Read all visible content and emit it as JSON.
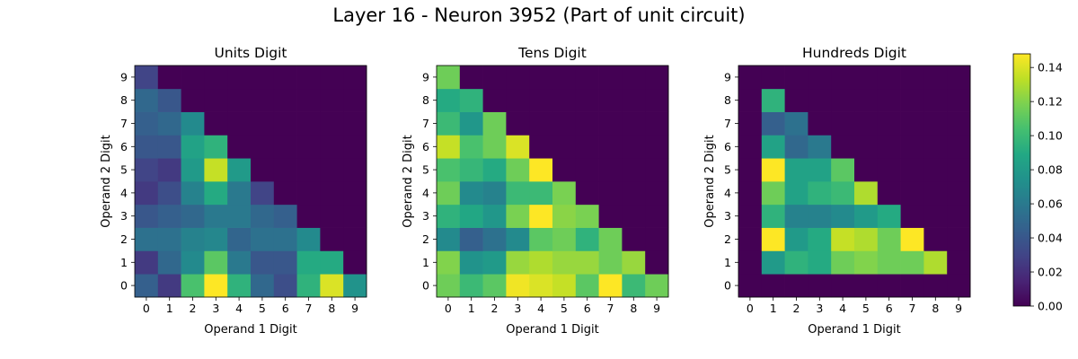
{
  "figure": {
    "title": "Layer 16 - Neuron 3952 (Part of unit circuit)"
  },
  "colorbar": {
    "min": 0,
    "max": 0.148,
    "ticks": [
      0.0,
      0.02,
      0.04,
      0.06,
      0.08,
      0.1,
      0.12,
      0.14
    ],
    "tick_labels": [
      "0.00",
      "0.02",
      "0.04",
      "0.06",
      "0.08",
      "0.10",
      "0.12",
      "0.14"
    ],
    "colormap": "viridis"
  },
  "chart_data": [
    {
      "type": "heatmap",
      "title": "Units Digit",
      "xlabel": "Operand 1 Digit",
      "ylabel": "Operand 2 Digit",
      "x_ticks": [
        "0",
        "1",
        "2",
        "3",
        "4",
        "5",
        "6",
        "7",
        "8",
        "9"
      ],
      "y_ticks": [
        "0",
        "1",
        "2",
        "3",
        "4",
        "5",
        "6",
        "7",
        "8",
        "9"
      ],
      "vmin": 0,
      "vmax": 0.148,
      "values_by_operand2": [
        [
          0.045,
          0.025,
          0.105,
          0.148,
          0.095,
          0.05,
          0.035,
          0.095,
          0.14,
          0.075
        ],
        [
          0.025,
          0.05,
          0.07,
          0.11,
          0.06,
          0.04,
          0.04,
          0.09,
          0.09,
          0.0
        ],
        [
          0.055,
          0.055,
          0.065,
          0.068,
          0.048,
          0.055,
          0.055,
          0.07,
          0.0,
          0.0
        ],
        [
          0.04,
          0.045,
          0.05,
          0.06,
          0.06,
          0.05,
          0.045,
          0.0,
          0.0,
          0.0
        ],
        [
          0.025,
          0.035,
          0.065,
          0.09,
          0.06,
          0.03,
          0.0,
          0.0,
          0.0,
          0.0
        ],
        [
          0.03,
          0.025,
          0.08,
          0.135,
          0.08,
          0.0,
          0.0,
          0.0,
          0.0,
          0.0
        ],
        [
          0.04,
          0.04,
          0.085,
          0.095,
          0.0,
          0.0,
          0.0,
          0.0,
          0.0,
          0.0
        ],
        [
          0.045,
          0.05,
          0.07,
          0.0,
          0.0,
          0.0,
          0.0,
          0.0,
          0.0,
          0.0
        ],
        [
          0.05,
          0.04,
          0.0,
          0.0,
          0.0,
          0.0,
          0.0,
          0.0,
          0.0,
          0.0
        ],
        [
          0.03,
          0.0,
          0.0,
          0.0,
          0.0,
          0.0,
          0.0,
          0.0,
          0.0,
          0.0
        ]
      ]
    },
    {
      "type": "heatmap",
      "title": "Tens Digit",
      "xlabel": "Operand 1 Digit",
      "ylabel": "Operand 2 Digit",
      "x_ticks": [
        "0",
        "1",
        "2",
        "3",
        "4",
        "5",
        "6",
        "7",
        "8",
        "9"
      ],
      "y_ticks": [
        "0",
        "1",
        "2",
        "3",
        "4",
        "5",
        "6",
        "7",
        "8",
        "9"
      ],
      "vmin": 0,
      "vmax": 0.148,
      "values_by_operand2": [
        [
          0.115,
          0.1,
          0.11,
          0.145,
          0.14,
          0.135,
          0.11,
          0.148,
          0.1,
          0.115
        ],
        [
          0.12,
          0.075,
          0.08,
          0.125,
          0.13,
          0.125,
          0.125,
          0.115,
          0.125,
          0.0
        ],
        [
          0.07,
          0.045,
          0.055,
          0.07,
          0.11,
          0.115,
          0.095,
          0.115,
          0.0,
          0.0
        ],
        [
          0.095,
          0.088,
          0.078,
          0.118,
          0.148,
          0.122,
          0.118,
          0.0,
          0.0,
          0.0
        ],
        [
          0.115,
          0.07,
          0.065,
          0.1,
          0.1,
          0.118,
          0.0,
          0.0,
          0.0,
          0.0
        ],
        [
          0.105,
          0.098,
          0.09,
          0.115,
          0.148,
          0.0,
          0.0,
          0.0,
          0.0,
          0.0
        ],
        [
          0.135,
          0.105,
          0.115,
          0.14,
          0.0,
          0.0,
          0.0,
          0.0,
          0.0,
          0.0
        ],
        [
          0.1,
          0.078,
          0.115,
          0.0,
          0.0,
          0.0,
          0.0,
          0.0,
          0.0,
          0.0
        ],
        [
          0.09,
          0.095,
          0.0,
          0.0,
          0.0,
          0.0,
          0.0,
          0.0,
          0.0,
          0.0
        ],
        [
          0.115,
          0.0,
          0.0,
          0.0,
          0.0,
          0.0,
          0.0,
          0.0,
          0.0,
          0.0
        ]
      ]
    },
    {
      "type": "heatmap",
      "title": "Hundreds Digit",
      "xlabel": "Operand 1 Digit",
      "ylabel": "Operand 2 Digit",
      "x_ticks": [
        "0",
        "1",
        "2",
        "3",
        "4",
        "5",
        "6",
        "7",
        "8",
        "9"
      ],
      "y_ticks": [
        "0",
        "1",
        "2",
        "3",
        "4",
        "5",
        "6",
        "7",
        "8",
        "9"
      ],
      "vmin": 0,
      "vmax": 0.148,
      "values_by_operand2": [
        [
          0.0,
          0.0,
          0.0,
          0.0,
          0.0,
          0.0,
          0.0,
          0.0,
          0.0,
          0.0
        ],
        [
          0.0,
          0.08,
          0.095,
          0.09,
          0.115,
          0.12,
          0.115,
          0.115,
          0.13,
          0.0
        ],
        [
          0.0,
          0.148,
          0.08,
          0.09,
          0.135,
          0.13,
          0.115,
          0.148,
          0.0,
          0.0
        ],
        [
          0.0,
          0.095,
          0.065,
          0.065,
          0.07,
          0.08,
          0.09,
          0.0,
          0.0,
          0.0
        ],
        [
          0.0,
          0.115,
          0.085,
          0.095,
          0.1,
          0.13,
          0.0,
          0.0,
          0.0,
          0.0
        ],
        [
          0.0,
          0.148,
          0.085,
          0.085,
          0.11,
          0.0,
          0.0,
          0.0,
          0.0,
          0.0
        ],
        [
          0.0,
          0.085,
          0.05,
          0.06,
          0.0,
          0.0,
          0.0,
          0.0,
          0.0,
          0.0
        ],
        [
          0.0,
          0.045,
          0.055,
          0.0,
          0.0,
          0.0,
          0.0,
          0.0,
          0.0,
          0.0
        ],
        [
          0.0,
          0.095,
          0.0,
          0.0,
          0.0,
          0.0,
          0.0,
          0.0,
          0.0,
          0.0
        ],
        [
          0.0,
          0.0,
          0.0,
          0.0,
          0.0,
          0.0,
          0.0,
          0.0,
          0.0,
          0.0
        ]
      ]
    }
  ]
}
